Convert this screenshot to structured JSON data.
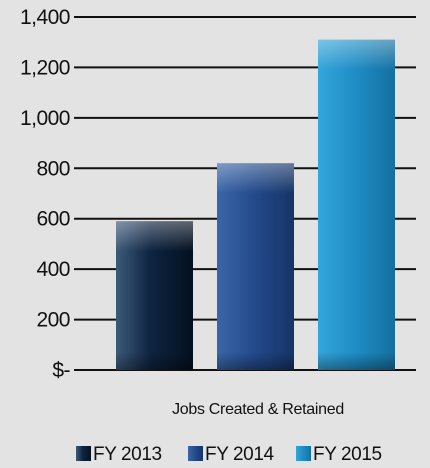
{
  "chart_data": {
    "type": "bar",
    "xlabel": "Jobs Created & Retained",
    "ylabel": "",
    "ylim": [
      0,
      1400
    ],
    "yticks": [
      0,
      200,
      400,
      600,
      800,
      1000,
      1200,
      1400
    ],
    "ytick_labels": [
      "$-",
      "200",
      "400",
      "600",
      "800",
      "1,000",
      "1,200",
      "1,400"
    ],
    "grid": true,
    "legend_position": "bottom",
    "categories": [
      "Jobs Created & Retained"
    ],
    "series": [
      {
        "name": "FY 2013",
        "values": [
          590
        ],
        "color": "#0f2038"
      },
      {
        "name": "FY 2014",
        "values": [
          820
        ],
        "color": "#2a4f8c"
      },
      {
        "name": "FY 2015",
        "values": [
          1310
        ],
        "color": "#2390c6"
      }
    ]
  }
}
